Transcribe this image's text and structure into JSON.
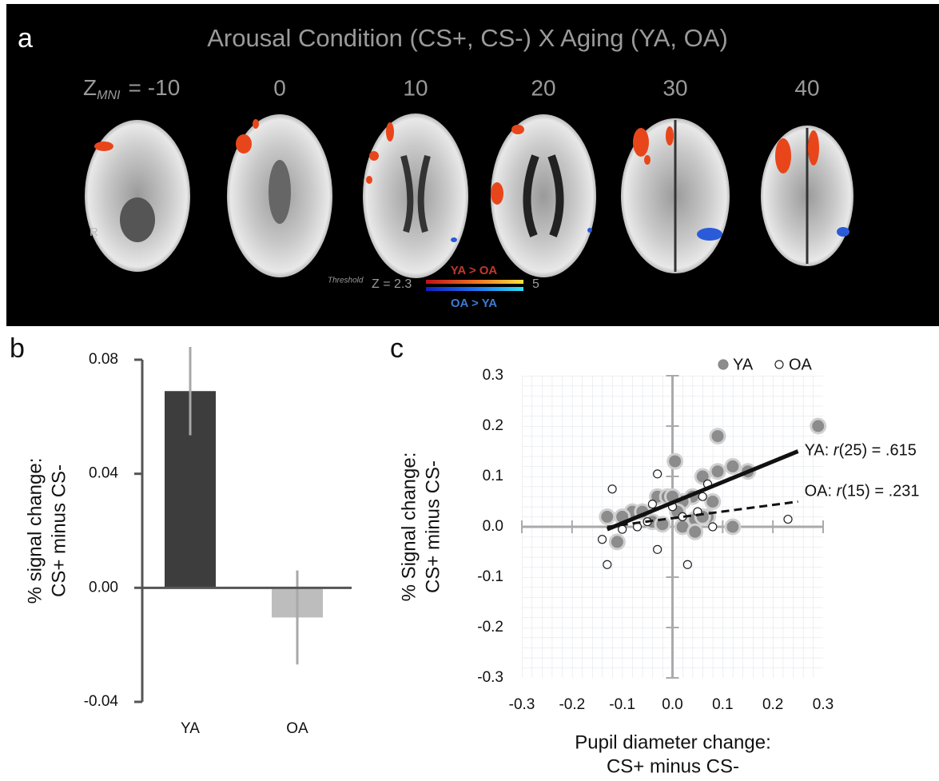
{
  "panel_a": {
    "panel_label": "a",
    "title": "Arousal Condition (CS+, CS-) X Aging (YA, OA)",
    "z_symbol": "Z",
    "z_subscript": "MNI",
    "equals": "=",
    "slices": [
      "-10",
      "0",
      "10",
      "20",
      "30",
      "40"
    ],
    "orientation": "R",
    "threshold_word": "Threshold",
    "threshold": "Z = 2.3",
    "max": "5",
    "contrast_pos": "YA > OA",
    "contrast_neg": "OA > YA"
  },
  "chart_data": [
    {
      "type": "bar",
      "panel_label": "b",
      "y_label": [
        "% signal change:",
        "CS+ minus CS-"
      ],
      "categories": [
        "YA",
        "OA"
      ],
      "values": [
        0.069,
        -0.0104
      ],
      "errors": [
        0.0155,
        0.0165
      ],
      "colors": [
        "#3d3d3d",
        "#bdbdbd"
      ],
      "error_color": "#a8a8a8",
      "ylim": [
        -0.04,
        0.08
      ],
      "yticks": [
        0.08,
        0.04,
        {
          "value": 0,
          "label": "0.00"
        },
        -0.04
      ]
    },
    {
      "type": "scatter",
      "panel_label": "c",
      "x_label": [
        "Pupil diameter change:",
        "CS+ minus CS-"
      ],
      "y_label": [
        "% Signal change:",
        "CS+ minus CS-"
      ],
      "xlim": [
        -0.3,
        0.3
      ],
      "ylim": [
        -0.3,
        0.3
      ],
      "xticks": [
        -0.3,
        -0.2,
        -0.1,
        {
          "value": 0,
          "label": "0.0"
        },
        0.1,
        0.2,
        0.3
      ],
      "yticks": [
        0.3,
        0.2,
        0.1,
        {
          "value": 0,
          "label": "0.0"
        },
        -0.1,
        -0.2,
        -0.3
      ],
      "series": [
        {
          "name": "YA",
          "color": "#8c8c8c",
          "x": [
            0.29,
            0.09,
            0.12,
            0.15,
            0.005,
            0.09,
            0.06,
            -0.03,
            -0.01,
            0.04,
            0.02,
            0.07,
            0.08,
            -0.08,
            -0.13,
            -0.04,
            0.045,
            0.02,
            0.045,
            0.12,
            -0.11,
            -0.06,
            0.01,
            0.06,
            -0.02,
            0.0,
            -0.1
          ],
          "y": [
            0.2,
            0.18,
            0.12,
            0.11,
            0.13,
            0.11,
            0.1,
            0.06,
            0.06,
            0.06,
            0.05,
            0.02,
            0.05,
            0.03,
            0.02,
            0.01,
            0.015,
            0.0,
            -0.01,
            0.0,
            -0.03,
            0.03,
            0.03,
            0.02,
            0.005,
            0.06,
            0.02
          ]
        },
        {
          "name": "OA",
          "color": "#ffffff",
          "x": [
            -0.12,
            -0.03,
            0.07,
            -0.04,
            -0.07,
            -0.1,
            -0.14,
            -0.13,
            -0.03,
            0.03,
            0.23,
            0.02,
            0.05,
            -0.05,
            0.0,
            0.06,
            0.08
          ],
          "y": [
            0.075,
            0.105,
            0.085,
            0.045,
            0.0,
            -0.005,
            -0.025,
            -0.075,
            -0.045,
            -0.075,
            0.015,
            0.02,
            0.03,
            0.01,
            0.04,
            0.06,
            0.0
          ]
        }
      ],
      "fits": [
        {
          "x": [
            -0.13,
            0.25
          ],
          "y": [
            -0.005,
            0.15
          ],
          "dashed": false,
          "label": [
            "YA: ",
            "r",
            "(25) = .615"
          ]
        },
        {
          "x": [
            -0.13,
            0.25
          ],
          "y": [
            0.0,
            0.05
          ],
          "dashed": true,
          "label": [
            "OA: ",
            "r",
            "(15) = .231"
          ]
        }
      ]
    }
  ]
}
